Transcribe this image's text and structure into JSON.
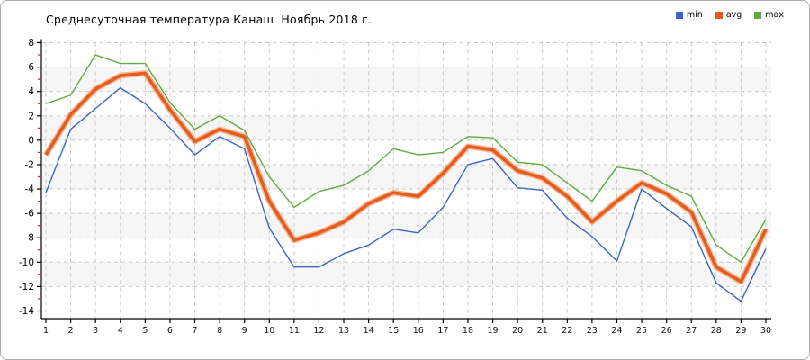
{
  "window": {
    "background": "#ffffff",
    "border_color": "#ababab"
  },
  "chart_data": {
    "type": "line",
    "title": "Среднесуточная температура Канаш  Ноябрь 2018 г.",
    "x_label_days": [
      1,
      2,
      3,
      4,
      5,
      6,
      7,
      8,
      9,
      10,
      11,
      12,
      13,
      14,
      15,
      16,
      17,
      18,
      19,
      20,
      21,
      22,
      23,
      24,
      25,
      26,
      27,
      28,
      29,
      30
    ],
    "y_tick_labels": [
      8,
      6,
      4,
      2,
      0,
      -2,
      -4,
      -6,
      -8,
      -10,
      -12,
      -14
    ],
    "ylim": [
      -14,
      8
    ],
    "y_major_step": 2,
    "grid": {
      "on": true,
      "color": "#c9c9c9",
      "dash": "4 4",
      "band_color": "#f6f6f6"
    },
    "axis_color": "#000000",
    "minor_tick_color": "#dd1111",
    "legend_position": "top-right",
    "series": [
      {
        "name": "min",
        "color": "#3c64c8",
        "width": 1.4,
        "values": [
          -4.3,
          0.9,
          2.6,
          4.3,
          3.0,
          1.0,
          -1.2,
          0.3,
          -0.7,
          -7.2,
          -10.4,
          -10.4,
          -9.3,
          -8.6,
          -7.3,
          -7.6,
          -5.5,
          -2.0,
          -1.5,
          -3.9,
          -4.1,
          -6.4,
          -7.9,
          -9.9,
          -4.0,
          -5.6,
          -7.1,
          -11.7,
          -13.2,
          -8.9
        ]
      },
      {
        "name": "avg",
        "color": "#e35d20",
        "halo_color": "#f6b795",
        "width": 3.6,
        "values": [
          -1.2,
          2.1,
          4.2,
          5.3,
          5.5,
          2.5,
          -0.1,
          0.9,
          0.3,
          -5.0,
          -8.2,
          -7.6,
          -6.7,
          -5.2,
          -4.3,
          -4.6,
          -2.7,
          -0.5,
          -0.8,
          -2.5,
          -3.1,
          -4.6,
          -6.7,
          -5.0,
          -3.5,
          -4.4,
          -5.9,
          -10.4,
          -11.6,
          -7.3
        ]
      },
      {
        "name": "max",
        "color": "#61aa40",
        "width": 1.4,
        "values": [
          3.0,
          3.7,
          7.0,
          6.3,
          6.3,
          3.1,
          0.9,
          2.0,
          0.8,
          -3.0,
          -5.5,
          -4.2,
          -3.7,
          -2.5,
          -0.7,
          -1.2,
          -1.0,
          0.3,
          0.2,
          -1.8,
          -2.0,
          -3.5,
          -5.0,
          -2.2,
          -2.5,
          -3.7,
          -4.6,
          -8.6,
          -10.0,
          -6.5
        ]
      }
    ]
  }
}
